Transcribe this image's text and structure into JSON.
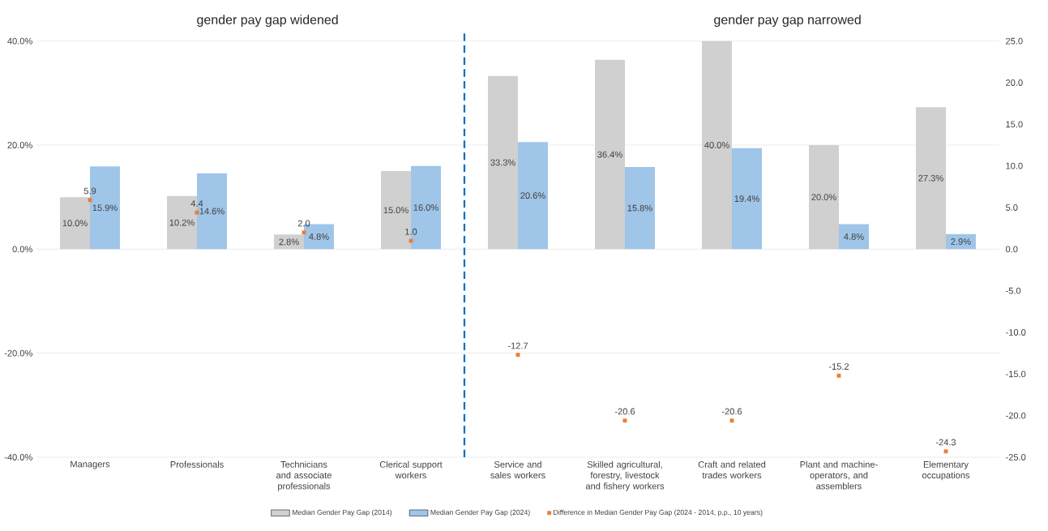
{
  "chart_data": {
    "type": "bar",
    "annotations": [
      "gender pay gap widened",
      "gender pay gap narrowed"
    ],
    "categories": [
      "Managers",
      "Professionals",
      "Technicians and associate professionals",
      "Clerical support workers",
      "Service and sales workers",
      "Skilled agricultural, forestry, livestock and fishery workers",
      "Craft and related trades workers",
      "Plant and machine-operators, and assemblers",
      "Elementary occupations"
    ],
    "series": [
      {
        "name": "Median Gender Pay Gap (2014)",
        "color": "#d0d0d0",
        "values": [
          10.0,
          10.2,
          2.8,
          15.0,
          33.3,
          36.4,
          40.0,
          20.0,
          27.3
        ],
        "value_labels": [
          "10.0%",
          "10.2%",
          "2.8%",
          "15.0%",
          "33.3%",
          "36.4%",
          "40.0%",
          "20.0%",
          "27.3%"
        ]
      },
      {
        "name": "Median Gender Pay Gap (2024)",
        "color": "#9fc5e8",
        "values": [
          15.9,
          14.6,
          4.8,
          16.0,
          20.6,
          15.8,
          19.4,
          4.8,
          2.9
        ],
        "value_labels": [
          "15.9%",
          "14.6%",
          "4.8%",
          "16.0%",
          "20.6%",
          "15.8%",
          "19.4%",
          "4.8%",
          "2.9%"
        ]
      },
      {
        "name": "Difference in Median Gender Pay Gap (2024 - 2014, p.p., 10 years)",
        "type": "scatter",
        "axis": "y2",
        "color": "#ed7d31",
        "values": [
          5.9,
          4.4,
          2.0,
          1.0,
          -12.7,
          -20.6,
          -20.6,
          -15.2,
          -24.3
        ],
        "value_labels": [
          "5.9",
          "4.4",
          "2.0",
          "1.0",
          "-12.7",
          "-20.6",
          "-20.6",
          "-15.2",
          "-24.3"
        ]
      }
    ],
    "ylim": [
      -40,
      40
    ],
    "yticks": [
      {
        "value": -40,
        "label": "-40.0%"
      },
      {
        "value": -20,
        "label": "-20.0%"
      },
      {
        "value": 0,
        "label": "0.0%"
      },
      {
        "value": 20,
        "label": "20.0%"
      },
      {
        "value": 40,
        "label": "40.0%"
      }
    ],
    "y2lim": [
      -25,
      25
    ],
    "y2ticks": [
      {
        "value": -25,
        "label": "-25.0"
      },
      {
        "value": -20,
        "label": "-20.0"
      },
      {
        "value": -15,
        "label": "-15.0"
      },
      {
        "value": -10,
        "label": "-10.0"
      },
      {
        "value": -5,
        "label": "-5.0"
      },
      {
        "value": 0,
        "label": "0.0"
      },
      {
        "value": 5,
        "label": "5.0"
      },
      {
        "value": 10,
        "label": "10.0"
      },
      {
        "value": 15,
        "label": "15.0"
      },
      {
        "value": 20,
        "label": "20.0"
      },
      {
        "value": 25,
        "label": "25.0"
      }
    ],
    "grid": "y",
    "legend": "bottom",
    "marker": "square"
  }
}
